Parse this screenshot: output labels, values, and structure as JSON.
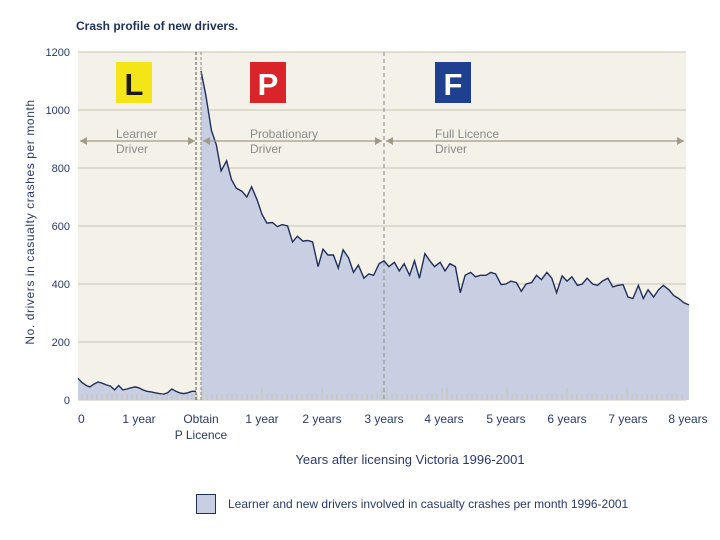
{
  "chart_data": {
    "type": "area",
    "title": "Crash profile of new drivers.",
    "ylabel": "No. drivers in casualty crashes per month",
    "xlabel": "Years after licensing Victoria 1996-2001",
    "ylim": [
      0,
      1200
    ],
    "yticks": [
      0,
      200,
      400,
      600,
      800,
      1000,
      1200
    ],
    "xticks": [
      "0",
      "1 year",
      "Obtain\nP Licence",
      "1 year",
      "2 years",
      "3 years",
      "4 years",
      "5 years",
      "6 years",
      "7 years",
      "8 years"
    ],
    "grid": true,
    "legend": "bottom",
    "phases": [
      {
        "badge": "L",
        "label": [
          "Learner",
          "Driver"
        ],
        "badge_bg": "#f4e519",
        "badge_fg": "#1a1a1a"
      },
      {
        "badge": "P",
        "label": [
          "Probationary",
          "Driver"
        ],
        "badge_bg": "#d9252a",
        "badge_fg": "#ffffff"
      },
      {
        "badge": "F",
        "label": [
          "Full Licence",
          "Driver"
        ],
        "badge_bg": "#1f3f8f",
        "badge_fg": "#ffffff"
      }
    ],
    "series": [
      {
        "name": "Learner and new drivers involved in casualty crashes per month 1996-2001",
        "segments": [
          {
            "x_unit": "years of learner period",
            "x": [
              0,
              0.07,
              0.14,
              0.2,
              0.27,
              0.34,
              0.41,
              0.48,
              0.55,
              0.62,
              0.69,
              0.76,
              0.83,
              0.9,
              0.97,
              1.03,
              1.1,
              1.17,
              1.24,
              1.31,
              1.38,
              1.45,
              1.52,
              1.59,
              1.66,
              1.72,
              1.79,
              1.86,
              1.93,
              2.0
            ],
            "y": [
              75,
              60,
              50,
              45,
              55,
              62,
              58,
              52,
              48,
              35,
              50,
              35,
              38,
              42,
              45,
              42,
              35,
              30,
              28,
              25,
              22,
              20,
              25,
              38,
              30,
              25,
              22,
              25,
              30,
              30
            ]
          },
          {
            "x_unit": "years after licensing",
            "x": [
              0,
              0.08,
              0.17,
              0.25,
              0.33,
              0.42,
              0.5,
              0.58,
              0.67,
              0.75,
              0.83,
              0.92,
              1.0,
              1.08,
              1.17,
              1.25,
              1.33,
              1.42,
              1.5,
              1.58,
              1.67,
              1.75,
              1.83,
              1.92,
              2.0,
              2.08,
              2.17,
              2.25,
              2.33,
              2.42,
              2.5,
              2.58,
              2.67,
              2.75,
              2.83,
              2.92,
              3.0,
              3.08,
              3.17,
              3.25,
              3.33,
              3.42,
              3.5,
              3.58,
              3.67,
              3.75,
              3.83,
              3.92,
              4.0,
              4.08,
              4.17,
              4.25,
              4.33,
              4.42,
              4.5,
              4.58,
              4.67,
              4.75,
              4.83,
              4.92,
              5.0,
              5.08,
              5.17,
              5.25,
              5.33,
              5.42,
              5.5,
              5.58,
              5.67,
              5.75,
              5.83,
              5.92,
              6.0,
              6.08,
              6.17,
              6.25,
              6.33,
              6.42,
              6.5,
              6.58,
              6.67,
              6.75,
              6.83,
              6.92,
              7.0,
              7.08,
              7.17,
              7.25,
              7.33,
              7.42,
              7.5,
              7.58,
              7.67,
              7.75,
              7.83,
              7.92,
              8.0
            ],
            "y": [
              1135,
              1050,
              930,
              880,
              790,
              825,
              760,
              730,
              720,
              700,
              735,
              690,
              640,
              610,
              612,
              598,
              605,
              600,
              545,
              565,
              548,
              550,
              545,
              460,
              520,
              500,
              500,
              455,
              518,
              490,
              440,
              465,
              420,
              435,
              430,
              470,
              480,
              460,
              475,
              445,
              470,
              430,
              480,
              420,
              505,
              480,
              460,
              475,
              445,
              470,
              460,
              370,
              430,
              440,
              425,
              430,
              430,
              440,
              435,
              398,
              400,
              410,
              405,
              375,
              400,
              405,
              430,
              415,
              440,
              420,
              370,
              428,
              410,
              425,
              395,
              400,
              420,
              400,
              395,
              410,
              420,
              390,
              395,
              398,
              355,
              350,
              395,
              350,
              380,
              355,
              380,
              395,
              380,
              360,
              350,
              335,
              328
            ]
          }
        ]
      }
    ]
  }
}
